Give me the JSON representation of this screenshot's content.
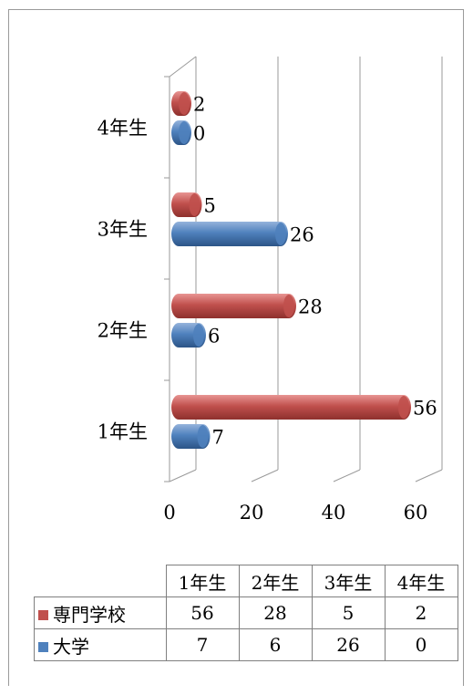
{
  "chart_data": {
    "type": "bar",
    "orientation": "horizontal",
    "three_d": true,
    "categories": [
      "1年生",
      "2年生",
      "3年生",
      "4年生"
    ],
    "series": [
      {
        "name": "専門学校",
        "color": "#c0504d",
        "values": [
          56,
          28,
          5,
          2
        ]
      },
      {
        "name": "大学",
        "color": "#4f81bd",
        "values": [
          7,
          6,
          26,
          0
        ]
      }
    ],
    "x_ticks": [
      "0",
      "20",
      "40",
      "60"
    ],
    "xlim": [
      0,
      60
    ],
    "grid": true,
    "legend": "data-table-below"
  }
}
